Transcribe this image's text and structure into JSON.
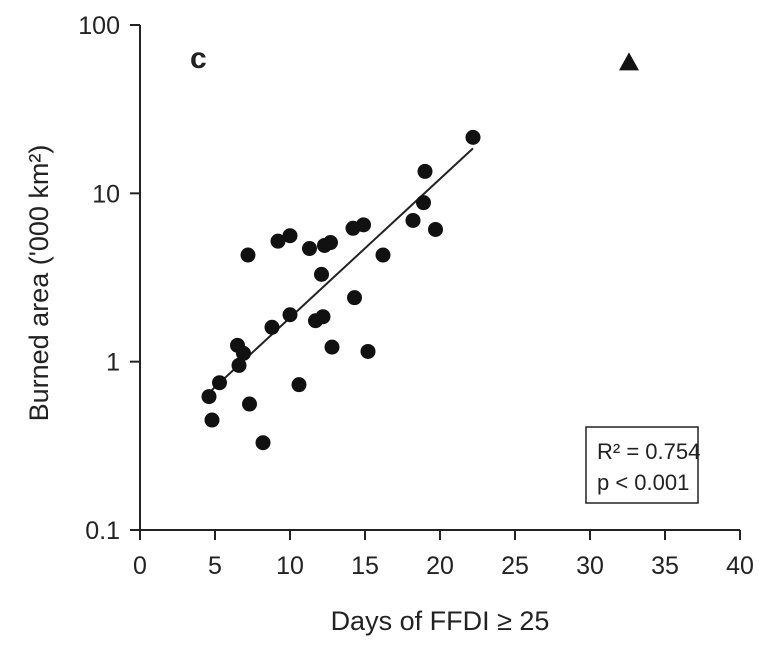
{
  "chart_data": {
    "type": "scatter",
    "panel_label": "c",
    "xlabel": "Days of FFDI ≥ 25",
    "ylabel": "Burned area ('000 km²)",
    "xlim": [
      0,
      40
    ],
    "ylim": [
      0.1,
      100
    ],
    "yscale": "log",
    "x_ticks": [
      0,
      5,
      10,
      15,
      20,
      25,
      30,
      35,
      40
    ],
    "x_tick_labels": [
      "0",
      "5",
      "10",
      "15",
      "20",
      "25",
      "30",
      "35",
      "40"
    ],
    "y_ticks": [
      0.1,
      1,
      10,
      100
    ],
    "y_tick_labels": [
      "0.1",
      "1",
      "10",
      "100"
    ],
    "grid": false,
    "series": [
      {
        "marker": "circle",
        "points": [
          {
            "x": 4.6,
            "y": 0.62
          },
          {
            "x": 4.8,
            "y": 0.45
          },
          {
            "x": 5.3,
            "y": 0.75
          },
          {
            "x": 6.5,
            "y": 1.25
          },
          {
            "x": 6.6,
            "y": 0.95
          },
          {
            "x": 6.9,
            "y": 1.12
          },
          {
            "x": 7.2,
            "y": 4.3
          },
          {
            "x": 7.3,
            "y": 0.56
          },
          {
            "x": 8.2,
            "y": 0.33
          },
          {
            "x": 8.8,
            "y": 1.6
          },
          {
            "x": 9.2,
            "y": 5.2
          },
          {
            "x": 10.0,
            "y": 5.6
          },
          {
            "x": 10.0,
            "y": 1.9
          },
          {
            "x": 10.6,
            "y": 0.73
          },
          {
            "x": 11.3,
            "y": 4.7
          },
          {
            "x": 11.7,
            "y": 1.75
          },
          {
            "x": 12.1,
            "y": 3.3
          },
          {
            "x": 12.2,
            "y": 1.85
          },
          {
            "x": 12.3,
            "y": 4.9
          },
          {
            "x": 12.7,
            "y": 5.1
          },
          {
            "x": 12.8,
            "y": 1.22
          },
          {
            "x": 14.2,
            "y": 6.2
          },
          {
            "x": 14.3,
            "y": 2.4
          },
          {
            "x": 14.9,
            "y": 6.5
          },
          {
            "x": 15.2,
            "y": 1.15
          },
          {
            "x": 16.2,
            "y": 4.3
          },
          {
            "x": 18.2,
            "y": 6.9
          },
          {
            "x": 18.9,
            "y": 8.8
          },
          {
            "x": 19.0,
            "y": 13.5
          },
          {
            "x": 19.7,
            "y": 6.1
          },
          {
            "x": 22.2,
            "y": 21.5
          }
        ]
      },
      {
        "marker": "triangle",
        "points": [
          {
            "x": 32.6,
            "y": 60
          }
        ]
      }
    ],
    "trendline": {
      "x": [
        4.8,
        22.2
      ],
      "y": [
        0.68,
        18.5
      ]
    },
    "annotation": {
      "line1": "R² = 0.754",
      "line2": "p < 0.001"
    }
  }
}
